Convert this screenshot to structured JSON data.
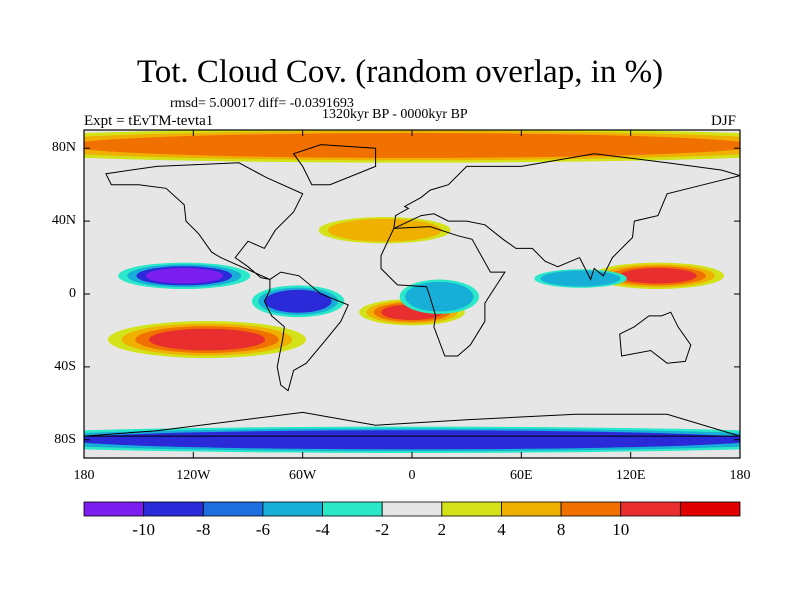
{
  "title": "Tot. Cloud Cov. (random overlap, in %)",
  "stats_line": "rmsd= 5.00017 diff= -0.0391693",
  "period": "1320kyr BP - 0000kyr BP",
  "experiment": "Expt = tEvTM-tevta1",
  "season": "DJF",
  "y_axis": {
    "ticks": [
      {
        "label": "80N",
        "value": 80
      },
      {
        "label": "40N",
        "value": 40
      },
      {
        "label": "0",
        "value": 0
      },
      {
        "label": "40S",
        "value": -40
      },
      {
        "label": "80S",
        "value": -80
      }
    ],
    "range": [
      -90,
      90
    ]
  },
  "x_axis": {
    "ticks": [
      {
        "label": "180",
        "value": -180
      },
      {
        "label": "120W",
        "value": -120
      },
      {
        "label": "60W",
        "value": -60
      },
      {
        "label": "0",
        "value": 0
      },
      {
        "label": "60E",
        "value": 60
      },
      {
        "label": "120E",
        "value": 120
      },
      {
        "label": "180",
        "value": 180
      }
    ],
    "range": [
      -180,
      180
    ]
  },
  "colorbar": {
    "colors": [
      "#7d1ef0",
      "#2a2ad8",
      "#1e6ee0",
      "#17aed8",
      "#2ae8c8",
      "#e6e6e6",
      "#d4e21a",
      "#f0b000",
      "#f07000",
      "#e82e2e",
      "#e00000"
    ],
    "labels": [
      {
        "text": "-10",
        "boundary": 1
      },
      {
        "text": "-8",
        "boundary": 2
      },
      {
        "text": "-6",
        "boundary": 3
      },
      {
        "text": "-4",
        "boundary": 4
      },
      {
        "text": "-2",
        "boundary": 5
      },
      {
        "text": "2",
        "boundary": 6
      },
      {
        "text": "4",
        "boundary": 7
      },
      {
        "text": "8",
        "boundary": 8
      },
      {
        "text": "10",
        "boundary": 9
      }
    ]
  },
  "chart_data": {
    "type": "heatmap",
    "description_units": "cloud cover difference in %",
    "season": "DJF",
    "xlim": [
      -180,
      180
    ],
    "ylim": [
      -90,
      90
    ],
    "levels": [
      -10,
      -8,
      -6,
      -4,
      -2,
      2,
      4,
      8,
      10
    ],
    "anomaly_regions": [
      {
        "lon": [
          -150,
          -75
        ],
        "lat": [
          -32,
          -18
        ],
        "value": 10
      },
      {
        "lon": [
          -150,
          -100
        ],
        "lat": [
          5,
          15
        ],
        "value": -10
      },
      {
        "lon": [
          -80,
          -45
        ],
        "lat": [
          -10,
          2
        ],
        "value": -8
      },
      {
        "lon": [
          -20,
          20
        ],
        "lat": [
          -15,
          -5
        ],
        "value": 10
      },
      {
        "lon": [
          0,
          30
        ],
        "lat": [
          -8,
          5
        ],
        "value": -6
      },
      {
        "lon": [
          110,
          160
        ],
        "lat": [
          5,
          15
        ],
        "value": 10
      },
      {
        "lon": [
          75,
          110
        ],
        "lat": [
          5,
          12
        ],
        "value": -6
      },
      {
        "lon": [
          -40,
          10
        ],
        "lat": [
          30,
          40
        ],
        "value": 4
      },
      {
        "lon": [
          -180,
          180
        ],
        "lat": [
          -85,
          -75
        ],
        "value": -8
      },
      {
        "lon": [
          -180,
          180
        ],
        "lat": [
          75,
          88
        ],
        "value": 8
      }
    ]
  }
}
